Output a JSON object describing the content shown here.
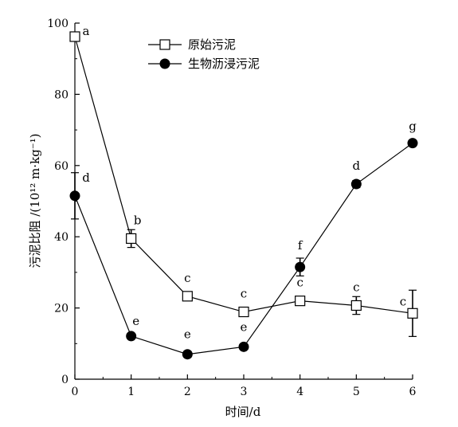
{
  "chart_data": {
    "type": "line",
    "xlabel": "时间/d",
    "ylabel": "污泥比阻 /(10¹² m·kg⁻¹)",
    "xlim": [
      0,
      6
    ],
    "ylim": [
      0,
      100
    ],
    "x_ticks": [
      "0",
      "1",
      "2",
      "3",
      "4",
      "5",
      "6"
    ],
    "y_ticks": [
      "0",
      "20",
      "40",
      "60",
      "80",
      "100"
    ],
    "legend_position": "top-center",
    "grid": false,
    "series": [
      {
        "name": "原始污泥",
        "marker": "open-square",
        "color": "#000000",
        "x": [
          0,
          1,
          2,
          3,
          4,
          5,
          6
        ],
        "y": [
          96.2,
          39.5,
          23.3,
          18.9,
          22.0,
          20.7,
          18.5
        ],
        "error": [
          1.0,
          2.5,
          1.0,
          0.8,
          1.0,
          2.5,
          6.5
        ],
        "labels": [
          "a",
          "b",
          "c",
          "c",
          "c",
          "c",
          "c"
        ]
      },
      {
        "name": "生物沥浸污泥",
        "marker": "filled-circle",
        "color": "#000000",
        "x": [
          0,
          1,
          2,
          3,
          4,
          5,
          6
        ],
        "y": [
          51.5,
          12.1,
          7.0,
          9.1,
          31.5,
          54.8,
          66.3
        ],
        "error": [
          6.5,
          0.5,
          0.4,
          0.5,
          2.5,
          1.0,
          0.8
        ],
        "labels": [
          "d",
          "e",
          "e",
          "e",
          "f",
          "d",
          "g"
        ]
      }
    ]
  }
}
